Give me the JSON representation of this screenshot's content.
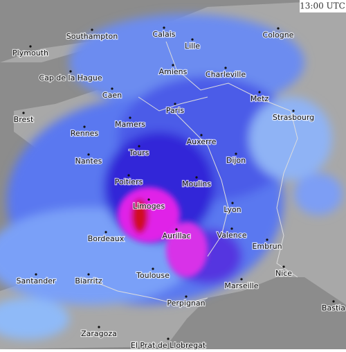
{
  "timestamp": "13:00 UTC",
  "cities": [
    "Southampton",
    "Calais",
    "Cologne",
    "Plymouth",
    "Lille",
    "Amiens",
    "Charleville",
    "Cap de la Hague",
    "Caen",
    "Metz",
    "Paris",
    "Brest",
    "Strasbourg",
    "Mamers",
    "Rennes",
    "Auxerre",
    "Tours",
    "Nantes",
    "Dijon",
    "Poitiers",
    "Moulins",
    "Limoges",
    "Lyon",
    "Valence",
    "Aurillac",
    "Bordeaux",
    "Embrun",
    "Nice",
    "Toulouse",
    "Santander",
    "Biarritz",
    "Marseille",
    "Perpignan",
    "Bastia",
    "Zaragoza",
    "El Prat de Llobregat"
  ]
}
